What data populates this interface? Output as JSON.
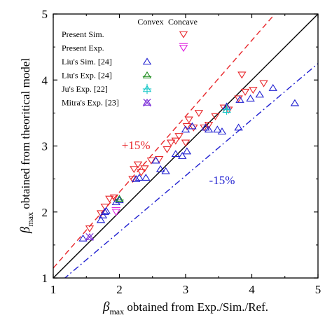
{
  "chart_data": {
    "type": "scatter",
    "xlim": [
      1,
      5
    ],
    "ylim": [
      1,
      5
    ],
    "xticks": [
      "1",
      "2",
      "3",
      "4",
      "5"
    ],
    "yticks": [
      "1",
      "2",
      "3",
      "4",
      "5"
    ],
    "xlabel_symbol": "β",
    "xlabel_sub": "max",
    "xlabel_rest": " obtained from Exp./Sim./Ref.",
    "ylabel_symbol": "β",
    "ylabel_sub": "max",
    "ylabel_rest": " obtained from theoritical model",
    "grid": false,
    "legend": {
      "placement": "top-left",
      "col_convex": "Convex",
      "col_concave": "Concave",
      "rows": [
        {
          "label": "Present Sim.",
          "convex": null,
          "concave": "present-sim-concave"
        },
        {
          "label": "Present Exp.",
          "convex": null,
          "concave": "present-exp-concave"
        },
        {
          "label": "Liu's Sim. [24]",
          "convex": "liu-sim-convex",
          "concave": null
        },
        {
          "label": "Liu's Exp. [24]",
          "convex": "liu-exp-convex",
          "concave": null
        },
        {
          "label": "Ju's Exp.   [22]",
          "convex": "ju-exp-convex",
          "concave": null
        },
        {
          "label": "Mitra's Exp. [23]",
          "convex": "mitra-exp-convex",
          "concave": null
        }
      ]
    },
    "reference_lines": [
      {
        "name": "y = x",
        "slope": 1.0,
        "style": "solid",
        "color": "#000000"
      },
      {
        "name": "+15%",
        "slope": 1.15,
        "style": "dashed",
        "color": "#e8262a"
      },
      {
        "name": "-15%",
        "slope": 0.85,
        "style": "dashdot",
        "color": "#1f1fd0"
      }
    ],
    "annotations": [
      {
        "text": "+15%",
        "x": 2.25,
        "y": 2.95,
        "color": "#e8262a"
      },
      {
        "text": "-15%",
        "x": 3.55,
        "y": 2.42,
        "color": "#1f1fd0"
      }
    ],
    "series": [
      {
        "id": "present-sim-concave",
        "marker": "triangle-down",
        "color": "#e8262a",
        "points": [
          [
            1.55,
            1.75
          ],
          [
            1.72,
            1.98
          ],
          [
            1.78,
            2.08
          ],
          [
            1.85,
            2.2
          ],
          [
            1.92,
            2.22
          ],
          [
            2.2,
            2.5
          ],
          [
            2.22,
            2.65
          ],
          [
            2.28,
            2.72
          ],
          [
            2.33,
            2.6
          ],
          [
            2.38,
            2.66
          ],
          [
            2.48,
            2.78
          ],
          [
            2.6,
            2.8
          ],
          [
            2.72,
            2.95
          ],
          [
            2.78,
            3.05
          ],
          [
            2.85,
            3.08
          ],
          [
            2.9,
            3.15
          ],
          [
            3.0,
            3.05
          ],
          [
            3.02,
            3.3
          ],
          [
            3.05,
            3.4
          ],
          [
            3.12,
            3.28
          ],
          [
            3.2,
            3.5
          ],
          [
            3.28,
            3.28
          ],
          [
            3.35,
            3.32
          ],
          [
            3.45,
            3.45
          ],
          [
            3.58,
            3.58
          ],
          [
            3.65,
            3.55
          ],
          [
            3.8,
            3.72
          ],
          [
            3.85,
            4.08
          ],
          [
            3.9,
            3.82
          ],
          [
            4.02,
            3.85
          ],
          [
            4.18,
            3.95
          ]
        ]
      },
      {
        "id": "present-exp-concave",
        "marker": "triangle-down-bar",
        "color": "#e020e0",
        "points": [
          [
            1.95,
            2.0
          ]
        ]
      },
      {
        "id": "liu-sim-convex",
        "marker": "triangle-up",
        "color": "#1f1fd0",
        "points": [
          [
            1.45,
            1.6
          ],
          [
            1.72,
            1.88
          ],
          [
            1.75,
            1.95
          ],
          [
            1.78,
            2.0
          ],
          [
            1.8,
            2.02
          ],
          [
            1.95,
            2.15
          ],
          [
            2.0,
            2.18
          ],
          [
            2.25,
            2.5
          ],
          [
            2.3,
            2.52
          ],
          [
            2.4,
            2.52
          ],
          [
            2.55,
            2.78
          ],
          [
            2.62,
            2.65
          ],
          [
            2.7,
            2.62
          ],
          [
            2.85,
            2.88
          ],
          [
            2.95,
            2.85
          ],
          [
            3.02,
            2.92
          ],
          [
            3.0,
            3.25
          ],
          [
            3.1,
            3.3
          ],
          [
            3.3,
            3.28
          ],
          [
            3.35,
            3.25
          ],
          [
            3.48,
            3.25
          ],
          [
            3.55,
            3.22
          ],
          [
            3.62,
            3.6
          ],
          [
            3.8,
            3.28
          ],
          [
            3.82,
            3.7
          ],
          [
            3.98,
            3.72
          ],
          [
            4.12,
            3.78
          ],
          [
            4.32,
            3.88
          ],
          [
            4.65,
            3.65
          ]
        ]
      },
      {
        "id": "liu-exp-convex",
        "marker": "triangle-up-bar",
        "color": "#1e8c1e",
        "points": [
          [
            2.0,
            2.2
          ]
        ]
      },
      {
        "id": "ju-exp-convex",
        "marker": "triangle-up-plus",
        "color": "#19c8c8",
        "points": [
          [
            3.62,
            3.55
          ]
        ]
      },
      {
        "id": "mitra-exp-convex",
        "marker": "triangle-up-x",
        "color": "#7a2bd8",
        "points": [
          [
            1.55,
            1.62
          ]
        ]
      }
    ]
  }
}
